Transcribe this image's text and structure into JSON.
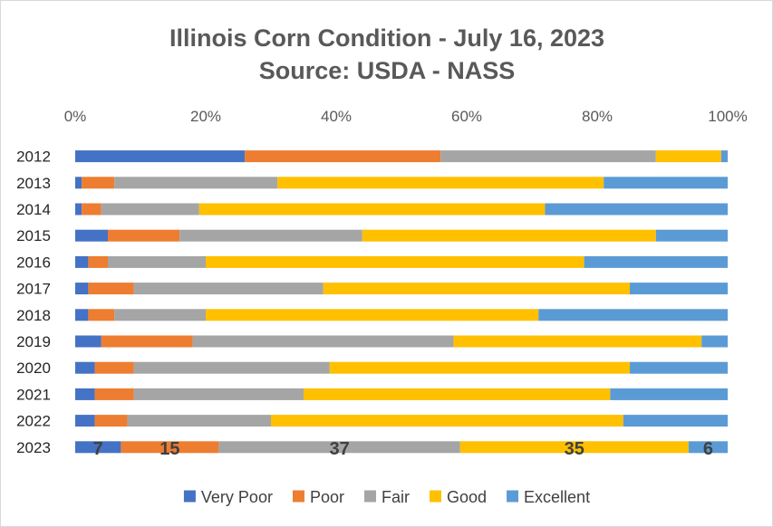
{
  "chart_data": {
    "type": "bar",
    "orientation": "horizontal",
    "stacked": "100%",
    "title": "Illinois Corn Condition - July 16, 2023",
    "subtitle": "Source: USDA - NASS",
    "xlim": [
      0,
      100
    ],
    "xticks": [
      "0%",
      "20%",
      "40%",
      "60%",
      "80%",
      "100%"
    ],
    "xaxis_position": "top",
    "grid": false,
    "legend": "bottom",
    "categories": [
      "2012",
      "2013",
      "2014",
      "2015",
      "2016",
      "2017",
      "2018",
      "2019",
      "2020",
      "2021",
      "2022",
      "2023"
    ],
    "series": [
      {
        "name": "Very Poor",
        "color": "#4472c4",
        "values": [
          26,
          1,
          1,
          5,
          2,
          2,
          2,
          4,
          3,
          3,
          3,
          7
        ]
      },
      {
        "name": "Poor",
        "color": "#ed7d31",
        "values": [
          30,
          5,
          3,
          11,
          3,
          7,
          4,
          14,
          6,
          6,
          5,
          15
        ]
      },
      {
        "name": "Fair",
        "color": "#a5a5a5",
        "values": [
          33,
          25,
          15,
          28,
          15,
          29,
          14,
          40,
          30,
          26,
          22,
          37
        ]
      },
      {
        "name": "Good",
        "color": "#ffc000",
        "values": [
          10,
          50,
          53,
          45,
          58,
          47,
          51,
          38,
          46,
          47,
          54,
          35
        ]
      },
      {
        "name": "Excellent",
        "color": "#5b9bd5",
        "values": [
          1,
          19,
          28,
          11,
          22,
          15,
          29,
          4,
          15,
          18,
          16,
          6
        ]
      }
    ],
    "data_labels": {
      "category": "2023",
      "values": [
        "7",
        "15",
        "37",
        "35",
        "6"
      ]
    }
  }
}
